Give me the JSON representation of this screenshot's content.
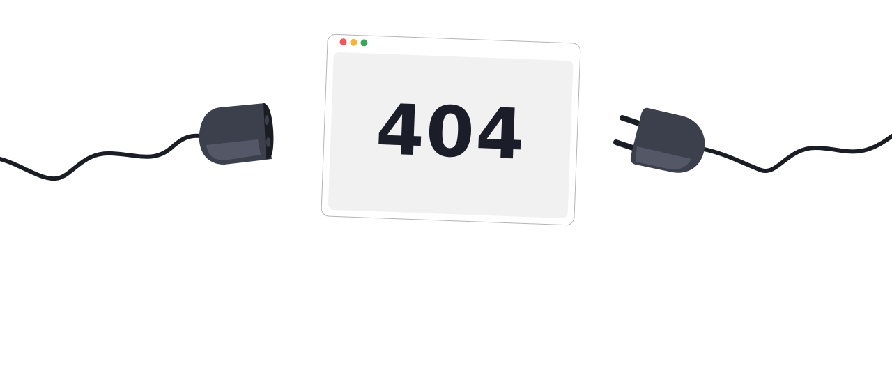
{
  "error": {
    "code": "404"
  },
  "illustration": {
    "window_controls": [
      "close-dot",
      "minimize-dot",
      "maximize-dot"
    ],
    "icons": [
      "socket-icon",
      "plug-icon",
      "cable"
    ]
  },
  "colors": {
    "plug": "#3c404d",
    "plug_highlight": "#545866",
    "cable": "#1b1d24",
    "screen": "#f1f1f1",
    "text": "#1b1d29",
    "dot_red": "#ec5b5b",
    "dot_yellow": "#f3b63c",
    "dot_green": "#3da35a"
  }
}
